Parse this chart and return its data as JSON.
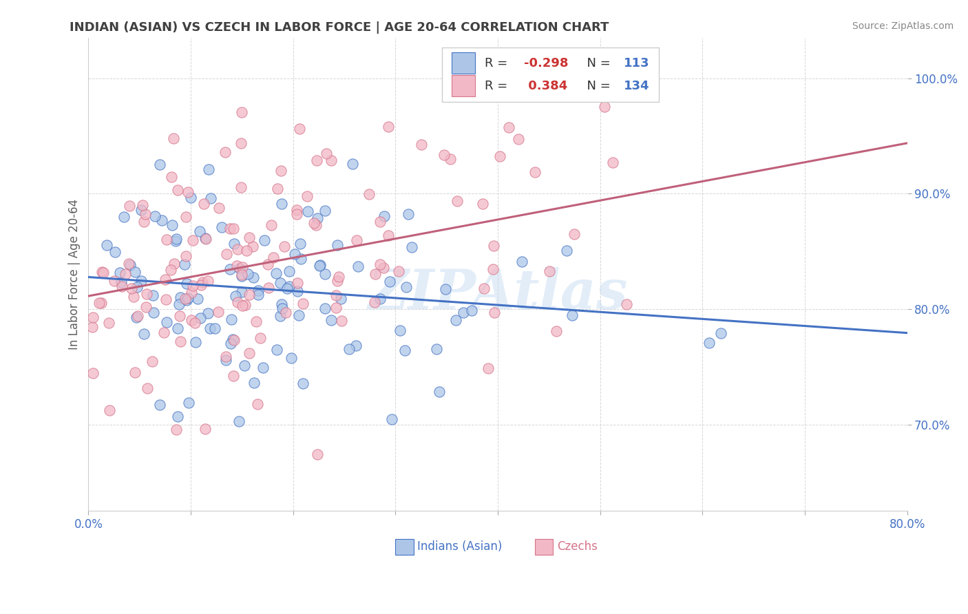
{
  "title": "INDIAN (ASIAN) VS CZECH IN LABOR FORCE | AGE 20-64 CORRELATION CHART",
  "source": "Source: ZipAtlas.com",
  "xlabel_indian": "Indians (Asian)",
  "xlabel_czech": "Czechs",
  "ylabel": "In Labor Force | Age 20-64",
  "watermark": "ZIPAtlas",
  "legend_blue_r": "-0.298",
  "legend_blue_n": "113",
  "legend_pink_r": "0.384",
  "legend_pink_n": "134",
  "xlim": [
    0.0,
    0.8
  ],
  "ylim": [
    0.625,
    1.035
  ],
  "yticks": [
    0.7,
    0.8,
    0.9,
    1.0
  ],
  "ytick_labels": [
    "70.0%",
    "80.0%",
    "90.0%",
    "100.0%"
  ],
  "xtick_positions": [
    0.0,
    0.1,
    0.2,
    0.3,
    0.4,
    0.5,
    0.6,
    0.7,
    0.8
  ],
  "xtick_labels": [
    "0.0%",
    "",
    "",
    "",
    "",
    "",
    "",
    "",
    "80.0%"
  ],
  "blue_face_color": "#adc6e8",
  "blue_edge_color": "#4472c4",
  "pink_face_color": "#f2b8c6",
  "pink_edge_color": "#d4748a",
  "blue_line_color": "#4472c4",
  "pink_line_color": "#c0607a",
  "title_color": "#404040",
  "axis_label_color": "#606060",
  "tick_color": "#4472c4",
  "source_color": "#888888",
  "legend_text_color": "#4472c4",
  "grid_color": "#cccccc",
  "watermark_color": "#c0d8f0"
}
